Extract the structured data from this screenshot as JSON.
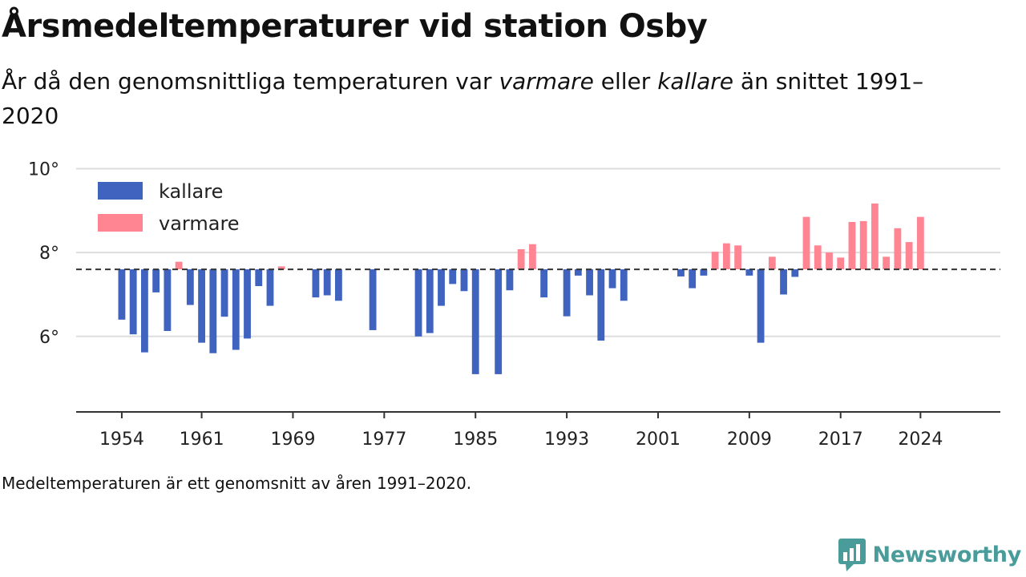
{
  "subtitle": {
    "part1": "År då den genomsnittliga temperaturen var ",
    "warm_word": "varmare",
    "part2": " eller ",
    "cold_word": "kallare",
    "part3": " än snittet 1991–2020"
  },
  "footnote": "Medeltemperaturen är ett genomsnitt av åren 1991–2020.",
  "brand": {
    "name": "Newsworthy",
    "icon": "newsworthy-logo-icon",
    "color": "#4a9c9a"
  },
  "chart_data": {
    "type": "bar",
    "title": "Årsmedeltemperaturer vid station Osby",
    "baseline": 7.6,
    "ylim": [
      4.2,
      10.2
    ],
    "xlim": [
      1950,
      2031
    ],
    "y_ticks": [
      10,
      8,
      6
    ],
    "y_tick_labels": [
      "10°",
      "8°",
      "6°"
    ],
    "x_ticks": [
      1954,
      1961,
      1969,
      1977,
      1985,
      1993,
      2001,
      2009,
      2017,
      2024
    ],
    "grid": true,
    "legend": {
      "position": "top-left",
      "entries": [
        {
          "key": "cold",
          "label": "kallare",
          "color": "#4063c0"
        },
        {
          "key": "warm",
          "label": "varmare",
          "color": "#ff8593"
        }
      ]
    },
    "years": [
      1954,
      1955,
      1956,
      1957,
      1958,
      1959,
      1960,
      1961,
      1962,
      1963,
      1964,
      1965,
      1966,
      1967,
      1968,
      1971,
      1972,
      1973,
      1976,
      1980,
      1981,
      1982,
      1983,
      1984,
      1985,
      1987,
      1988,
      1989,
      1990,
      1991,
      1993,
      1994,
      1995,
      1996,
      1997,
      1998,
      2003,
      2004,
      2005,
      2006,
      2007,
      2008,
      2009,
      2010,
      2011,
      2012,
      2013,
      2014,
      2015,
      2016,
      2017,
      2018,
      2019,
      2020,
      2021,
      2022,
      2023,
      2024
    ],
    "values": [
      6.4,
      6.05,
      5.62,
      7.05,
      6.13,
      7.78,
      6.75,
      5.85,
      5.6,
      6.47,
      5.68,
      5.95,
      7.2,
      6.73,
      7.67,
      6.93,
      6.98,
      6.85,
      6.15,
      6.0,
      6.08,
      6.73,
      7.25,
      7.08,
      5.1,
      5.1,
      7.1,
      8.08,
      8.2,
      6.93,
      6.48,
      7.45,
      6.98,
      5.9,
      7.15,
      6.85,
      7.43,
      7.15,
      7.45,
      8.02,
      8.22,
      8.17,
      7.45,
      5.85,
      7.9,
      7.0,
      7.42,
      8.85,
      8.17,
      8.0,
      7.88,
      8.73,
      8.75,
      9.17,
      7.9,
      8.58,
      8.25,
      8.85
    ]
  }
}
